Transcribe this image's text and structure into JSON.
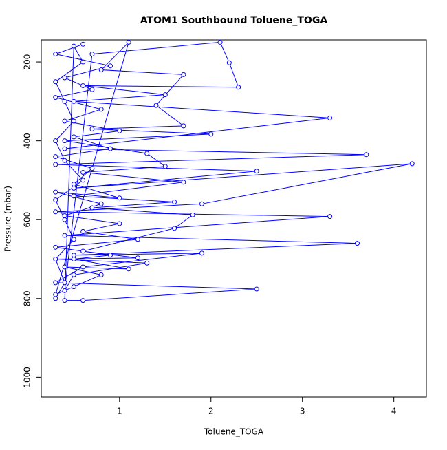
{
  "chart_data": {
    "type": "line",
    "title": "ATOM1 Southbound Toluene_TOGA",
    "x_label": "Toluene_TOGA",
    "y_label": "Pressure (mbar)",
    "xlim": [
      0.144,
      4.356
    ],
    "xticks": [
      1,
      2,
      3,
      4
    ],
    "ylim": [
      1050,
      144
    ],
    "yticks": [
      200,
      400,
      600,
      800,
      1000
    ],
    "series": [
      {
        "color": "#0000ff",
        "x": [
          0.3,
          0.4,
          0.3,
          0.5,
          0.4,
          0.3,
          0.6,
          0.4,
          0.3,
          0.5,
          0.4,
          0.3,
          0.6,
          0.5,
          0.4,
          0.6,
          2.5,
          0.3,
          0.6,
          1.9,
          0.5,
          3.6,
          0.4,
          3.3,
          0.3,
          1.9,
          4.2,
          0.5,
          2.5,
          0.3,
          3.7,
          0.4,
          3.3,
          0.5,
          1.5,
          0.6,
          2.3,
          2.2,
          2.1,
          0.7,
          0.4,
          0.5,
          1.3,
          0.3,
          1.2,
          0.6,
          1.6,
          1.8,
          0.7,
          1.6,
          0.5,
          1.7,
          0.6,
          1.5,
          1.3,
          0.4,
          2.0,
          0.7,
          1.7,
          1.4,
          1.7,
          0.8,
          1.1,
          0.3,
          0.5,
          0.8,
          0.4,
          1.1,
          0.5,
          0.9,
          0.3,
          1.2,
          0.6,
          1.0,
          0.4,
          0.8,
          0.3,
          1.0,
          0.5,
          0.7,
          0.3,
          0.9,
          0.5,
          1.0,
          0.4,
          0.8,
          0.3,
          0.7,
          0.4,
          0.9,
          0.3,
          0.6
        ],
        "values": [
          800,
          760,
          700,
          650,
          600,
          550,
          500,
          450,
          400,
          350,
          300,
          250,
          200,
          160,
          805,
          805,
          776,
          760,
          720,
          685,
          690,
          660,
          640,
          592,
          580,
          560,
          458,
          520,
          477,
          460,
          435,
          420,
          342,
          300,
          283,
          260,
          264,
          202,
          150,
          180,
          780,
          740,
          710,
          700,
          697,
          680,
          622,
          588,
          570,
          555,
          540,
          505,
          480,
          465,
          432,
          400,
          383,
          370,
          362,
          310,
          232,
          220,
          150,
          790,
          770,
          740,
          720,
          725,
          700,
          690,
          670,
          650,
          630,
          610,
          590,
          560,
          530,
          545,
          510,
          470,
          440,
          420,
          390,
          375,
          350,
          320,
          290,
          270,
          240,
          210,
          180,
          155
        ]
      }
    ]
  }
}
